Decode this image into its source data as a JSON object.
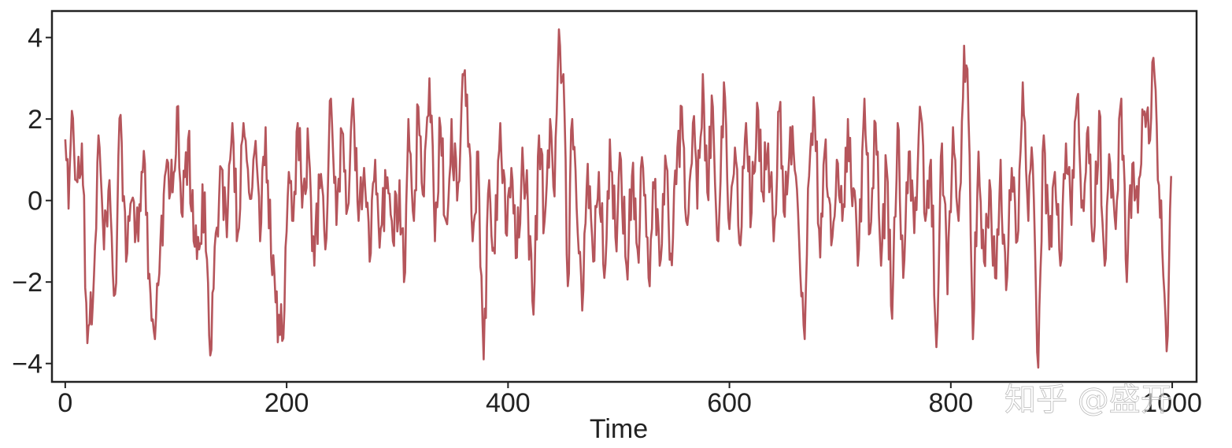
{
  "watermark": "知乎 @盛开",
  "chart_data": {
    "type": "line",
    "xlabel": "Time",
    "ylabel": "",
    "xlim": [
      -12,
      1022
    ],
    "ylim": [
      -4.45,
      4.65
    ],
    "xticks": [
      0,
      200,
      400,
      600,
      800,
      1000
    ],
    "yticks": [
      -4,
      -2,
      0,
      2,
      4
    ],
    "grid": false,
    "line_color": "#b5555b",
    "series_length": 1000,
    "anchors": [
      {
        "x": 0,
        "y": 1.5
      },
      {
        "x": 3,
        "y": -0.2
      },
      {
        "x": 6,
        "y": 2.2
      },
      {
        "x": 10,
        "y": 0.5
      },
      {
        "x": 15,
        "y": 1.4
      },
      {
        "x": 20,
        "y": -3.5
      },
      {
        "x": 25,
        "y": -2.5
      },
      {
        "x": 30,
        "y": 1.6
      },
      {
        "x": 35,
        "y": -1.2
      },
      {
        "x": 40,
        "y": 0.5
      },
      {
        "x": 45,
        "y": -2.3
      },
      {
        "x": 50,
        "y": 2.1
      },
      {
        "x": 55,
        "y": -1.5
      },
      {
        "x": 60,
        "y": 0.0
      },
      {
        "x": 66,
        "y": -1.0
      },
      {
        "x": 72,
        "y": 0.9
      },
      {
        "x": 76,
        "y": -1.8
      },
      {
        "x": 81,
        "y": -3.4
      },
      {
        "x": 86,
        "y": -1.0
      },
      {
        "x": 92,
        "y": 1.0
      },
      {
        "x": 97,
        "y": 0.2
      },
      {
        "x": 101,
        "y": 2.3
      },
      {
        "x": 106,
        "y": -0.4
      },
      {
        "x": 111,
        "y": 1.5
      },
      {
        "x": 116,
        "y": -1.0
      },
      {
        "x": 121,
        "y": -1.2
      },
      {
        "x": 126,
        "y": 0.2
      },
      {
        "x": 131,
        "y": -3.8
      },
      {
        "x": 136,
        "y": -0.8
      },
      {
        "x": 141,
        "y": 0.8
      },
      {
        "x": 146,
        "y": -0.9
      },
      {
        "x": 151,
        "y": 1.9
      },
      {
        "x": 156,
        "y": -0.8
      },
      {
        "x": 161,
        "y": 1.9
      },
      {
        "x": 166,
        "y": 0.2
      },
      {
        "x": 171,
        "y": 1.2
      },
      {
        "x": 176,
        "y": -1.0
      },
      {
        "x": 181,
        "y": 1.8
      },
      {
        "x": 186,
        "y": -1.4
      },
      {
        "x": 190,
        "y": -2.5
      },
      {
        "x": 194,
        "y": -3.3
      },
      {
        "x": 198,
        "y": -2.7
      },
      {
        "x": 202,
        "y": 0.7
      },
      {
        "x": 206,
        "y": -0.5
      },
      {
        "x": 210,
        "y": 1.9
      },
      {
        "x": 215,
        "y": 0.3
      },
      {
        "x": 220,
        "y": 1.2
      },
      {
        "x": 225,
        "y": -1.6
      },
      {
        "x": 230,
        "y": 0.3
      },
      {
        "x": 235,
        "y": -1.2
      },
      {
        "x": 240,
        "y": 2.5
      },
      {
        "x": 245,
        "y": -0.6
      },
      {
        "x": 250,
        "y": 1.7
      },
      {
        "x": 255,
        "y": -0.2
      },
      {
        "x": 260,
        "y": 2.5
      },
      {
        "x": 265,
        "y": -0.5
      },
      {
        "x": 270,
        "y": 0.8
      },
      {
        "x": 275,
        "y": -1.5
      },
      {
        "x": 280,
        "y": 1.0
      },
      {
        "x": 285,
        "y": -0.7
      },
      {
        "x": 290,
        "y": 0.3
      },
      {
        "x": 296,
        "y": -1.0
      },
      {
        "x": 302,
        "y": 0.5
      },
      {
        "x": 306,
        "y": -2.0
      },
      {
        "x": 310,
        "y": 2.0
      },
      {
        "x": 315,
        "y": -0.5
      },
      {
        "x": 319,
        "y": 2.3
      },
      {
        "x": 324,
        "y": 0.1
      },
      {
        "x": 329,
        "y": 3.0
      },
      {
        "x": 334,
        "y": -1.0
      },
      {
        "x": 339,
        "y": 1.8
      },
      {
        "x": 344,
        "y": -0.5
      },
      {
        "x": 349,
        "y": 2.0
      },
      {
        "x": 354,
        "y": 0.0
      },
      {
        "x": 359,
        "y": 3.1
      },
      {
        "x": 363,
        "y": 2.6
      },
      {
        "x": 368,
        "y": -1.0
      },
      {
        "x": 373,
        "y": 1.2
      },
      {
        "x": 378,
        "y": -3.9
      },
      {
        "x": 383,
        "y": 0.5
      },
      {
        "x": 388,
        "y": -1.3
      },
      {
        "x": 393,
        "y": 1.9
      },
      {
        "x": 398,
        "y": -0.8
      },
      {
        "x": 403,
        "y": 0.8
      },
      {
        "x": 408,
        "y": -1.4
      },
      {
        "x": 413,
        "y": 1.3
      },
      {
        "x": 418,
        "y": -0.2
      },
      {
        "x": 423,
        "y": -2.8
      },
      {
        "x": 428,
        "y": 1.6
      },
      {
        "x": 433,
        "y": -0.5
      },
      {
        "x": 438,
        "y": 2.0
      },
      {
        "x": 442,
        "y": 0.1
      },
      {
        "x": 446,
        "y": 4.2
      },
      {
        "x": 450,
        "y": 3.1
      },
      {
        "x": 454,
        "y": -2.1
      },
      {
        "x": 458,
        "y": 2.0
      },
      {
        "x": 463,
        "y": -0.8
      },
      {
        "x": 467,
        "y": -2.7
      },
      {
        "x": 472,
        "y": 0.9
      },
      {
        "x": 477,
        "y": -1.5
      },
      {
        "x": 482,
        "y": 0.7
      },
      {
        "x": 487,
        "y": -1.9
      },
      {
        "x": 492,
        "y": 1.5
      },
      {
        "x": 497,
        "y": -0.9
      },
      {
        "x": 502,
        "y": 1.0
      },
      {
        "x": 507,
        "y": -1.6
      },
      {
        "x": 512,
        "y": 0.6
      },
      {
        "x": 517,
        "y": -1.2
      },
      {
        "x": 522,
        "y": 0.8
      },
      {
        "x": 527,
        "y": -1.9
      },
      {
        "x": 532,
        "y": 0.3
      },
      {
        "x": 537,
        "y": -1.6
      },
      {
        "x": 542,
        "y": 1.1
      },
      {
        "x": 547,
        "y": -1.3
      },
      {
        "x": 552,
        "y": 0.4
      },
      {
        "x": 557,
        "y": 2.3
      },
      {
        "x": 562,
        "y": -0.6
      },
      {
        "x": 567,
        "y": 1.9
      },
      {
        "x": 571,
        "y": -0.2
      },
      {
        "x": 576,
        "y": 3.1
      },
      {
        "x": 580,
        "y": 0.2
      },
      {
        "x": 585,
        "y": 2.3
      },
      {
        "x": 590,
        "y": -1.0
      },
      {
        "x": 595,
        "y": 2.9
      },
      {
        "x": 600,
        "y": -0.7
      },
      {
        "x": 605,
        "y": 1.3
      },
      {
        "x": 610,
        "y": -1.1
      },
      {
        "x": 615,
        "y": 1.9
      },
      {
        "x": 620,
        "y": -0.3
      },
      {
        "x": 625,
        "y": 2.4
      },
      {
        "x": 630,
        "y": 0.2
      },
      {
        "x": 635,
        "y": 1.4
      },
      {
        "x": 640,
        "y": -1.0
      },
      {
        "x": 645,
        "y": 2.2
      },
      {
        "x": 650,
        "y": -0.4
      },
      {
        "x": 655,
        "y": 1.8
      },
      {
        "x": 660,
        "y": 0.6
      },
      {
        "x": 664,
        "y": -1.8
      },
      {
        "x": 668,
        "y": -3.4
      },
      {
        "x": 672,
        "y": 0.6
      },
      {
        "x": 677,
        "y": 2.1
      },
      {
        "x": 682,
        "y": -1.4
      },
      {
        "x": 687,
        "y": 1.5
      },
      {
        "x": 692,
        "y": -1.1
      },
      {
        "x": 697,
        "y": 1.0
      },
      {
        "x": 702,
        "y": -0.5
      },
      {
        "x": 707,
        "y": 2.0
      },
      {
        "x": 712,
        "y": 0.3
      },
      {
        "x": 717,
        "y": -1.2
      },
      {
        "x": 722,
        "y": 2.5
      },
      {
        "x": 727,
        "y": -0.8
      },
      {
        "x": 732,
        "y": 1.9
      },
      {
        "x": 737,
        "y": -1.6
      },
      {
        "x": 742,
        "y": 0.8
      },
      {
        "x": 747,
        "y": -2.9
      },
      {
        "x": 752,
        "y": 1.9
      },
      {
        "x": 757,
        "y": -1.9
      },
      {
        "x": 762,
        "y": 1.2
      },
      {
        "x": 767,
        "y": -0.8
      },
      {
        "x": 772,
        "y": 2.3
      },
      {
        "x": 777,
        "y": -0.5
      },
      {
        "x": 782,
        "y": 1.0
      },
      {
        "x": 787,
        "y": -3.6
      },
      {
        "x": 792,
        "y": 1.4
      },
      {
        "x": 797,
        "y": -2.3
      },
      {
        "x": 802,
        "y": 1.8
      },
      {
        "x": 807,
        "y": -0.5
      },
      {
        "x": 812,
        "y": 3.8
      },
      {
        "x": 816,
        "y": 2.0
      },
      {
        "x": 820,
        "y": -3.4
      },
      {
        "x": 825,
        "y": 1.2
      },
      {
        "x": 830,
        "y": -1.5
      },
      {
        "x": 835,
        "y": 0.5
      },
      {
        "x": 840,
        "y": -1.9
      },
      {
        "x": 845,
        "y": 1.0
      },
      {
        "x": 850,
        "y": -2.2
      },
      {
        "x": 855,
        "y": 0.8
      },
      {
        "x": 860,
        "y": -1.0
      },
      {
        "x": 865,
        "y": 2.9
      },
      {
        "x": 870,
        "y": -0.5
      },
      {
        "x": 874,
        "y": 0.9
      },
      {
        "x": 879,
        "y": -4.1
      },
      {
        "x": 884,
        "y": 1.6
      },
      {
        "x": 889,
        "y": -1.2
      },
      {
        "x": 894,
        "y": 0.7
      },
      {
        "x": 899,
        "y": -1.6
      },
      {
        "x": 904,
        "y": 1.4
      },
      {
        "x": 909,
        "y": -0.6
      },
      {
        "x": 914,
        "y": 2.5
      },
      {
        "x": 919,
        "y": 0.0
      },
      {
        "x": 924,
        "y": 1.8
      },
      {
        "x": 929,
        "y": -1.0
      },
      {
        "x": 934,
        "y": 2.2
      },
      {
        "x": 939,
        "y": -1.6
      },
      {
        "x": 944,
        "y": 0.9
      },
      {
        "x": 949,
        "y": -0.7
      },
      {
        "x": 954,
        "y": 2.5
      },
      {
        "x": 959,
        "y": -2.0
      },
      {
        "x": 964,
        "y": 0.9
      },
      {
        "x": 969,
        "y": -0.3
      },
      {
        "x": 974,
        "y": 2.1
      },
      {
        "x": 979,
        "y": 1.4
      },
      {
        "x": 983,
        "y": 3.5
      },
      {
        "x": 987,
        "y": 0.5
      },
      {
        "x": 991,
        "y": -1.2
      },
      {
        "x": 995,
        "y": -3.7
      },
      {
        "x": 999,
        "y": 0.6
      }
    ]
  }
}
